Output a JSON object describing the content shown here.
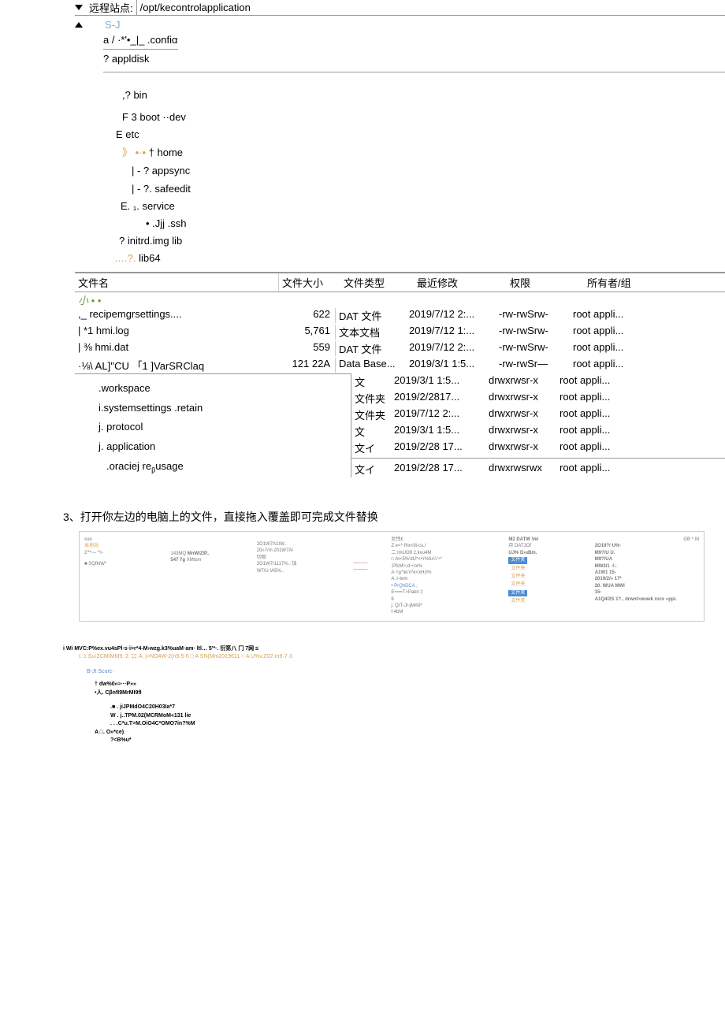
{
  "header": {
    "label": "远程站点:",
    "path": "/opt/kecontrolapplication"
  },
  "tree": {
    "sj": "S-J",
    "line1": "a / ·*'•_|_ .confiα",
    "line2": "? appldisk",
    "items": [
      ",? bin",
      "F 3 boot ··dev",
      "E    etc",
      "》 •·• † home",
      "| - ? appsync",
      "| - ?. safeedit",
      "E. ₁. service",
      "• .Jjj .ssh",
      "? initrd.img lib",
      "….?. lib64"
    ]
  },
  "table": {
    "headers": [
      "文件名",
      "文件大小",
      "文件类型",
      "最近修改",
      "权限",
      "所有者/组"
    ],
    "topDots": "小 • •",
    "rows": [
      {
        "name": ",_ recipemgrsettings....",
        "size": "622",
        "type": "DAT 文件",
        "mod": "2019/7/12  2:...",
        "perm": "-rw-rwSrw-",
        "own": "root appli..."
      },
      {
        "name": "| *1 hmi.log",
        "size": "5,761",
        "type": "文本文档",
        "mod": "2019/7/12  1:...",
        "perm": "-rw-rwSrw-",
        "own": "root appli..."
      },
      {
        "name": "| ⅜ hmi.dat",
        "size": "559",
        "type": "DAT 文件",
        "mod": "2019/7/12  2:...",
        "perm": "-rw-rwSrw-",
        "own": "root appli..."
      },
      {
        "name": "·⅛\\ AL]''CU 「1 ]VarSRClaq",
        "size": "121 22A",
        "type": "Data Base...",
        "mod": "2019/3/1 1:5...",
        "perm": "-rw-rwSr—",
        "own": "root appli..."
      }
    ],
    "folderBlock": [
      {
        "left": ".workspace",
        "type": "文",
        "mod": "2019/3/1 1:5...",
        "perm": "drwxrwsr-x",
        "own": "root appli..."
      },
      {
        "left": "i.systemsettings .retain",
        "type": "文件夹",
        "mod": "2019/2/2817...",
        "perm": "drwxrwsr-x",
        "own": "root appli..."
      },
      {
        "left": "j.  protocol",
        "type": "文件夹",
        "mod": "2019/7/12 2:...",
        "perm": "drwxrwsr-x",
        "own": "root appli..."
      },
      {
        "left": "j.  application",
        "type": "文",
        "mod": "2019/3/1 1:5...",
        "perm": "drwxrwsr-x",
        "own": "root appli..."
      },
      {
        "left": "",
        "type": "文イ",
        "mod": "2019/2/28 17...",
        "perm": "drwxrwsr-x",
        "own": "root appli..."
      },
      {
        "left": ".oraciej reβusage",
        "type": "文イ",
        "mod": "2019/2/28 17...",
        "perm": "drwxrwsrwx",
        "own": "root appli..."
      }
    ]
  },
  "section3": {
    "title": "3、打开你左边的电脑上的文件，直接拖入覆盖即可完成文件替换",
    "thumb": {
      "col1": {
        "a": "soo",
        "b": "本地站",
        "c": "2'**--- *'r-",
        "d": "■ SQfktW*"
      },
      "col2": {
        "a": "143MQ",
        "b": "547 7g",
        "c": "MnWlZIP..",
        "d": "XMtsm"
      },
      "col3": [
        "2O1W7A1tW..",
        "20i›7/m  201W7Al",
        "切取",
        "2O1W7/1117%.. 加",
        "W7/U IA5%.."
      ],
      "col4": {
        "h": "女性£",
        "items": [
          "Z e<*·flrx<9i-cs./",
          "二 ImUO9 2,kvu4M",
          "□ At<5%'dU*<•'r%fu¼'÷*",
          ",PfcM>;d⋅<or%",
          "A ¼y'\\te'n*e<xH)/%",
          "A :r-tem",
          "• PrQhDCA ;",
          "E===T>Pakri  ‡",
          "8",
          "",
          "j. QrT-Jr-jMA9*",
          "",
          "f 4bM"
        ]
      },
      "col5": {
        "a": "M2 DATW Vei",
        "b": "月 DATJOf",
        "c": "UJ% D›uBm.",
        "btns": [
          "文件夹",
          "文件夹",
          "文件夹",
          "文件夹",
          "文件夹",
          "文件夹"
        ]
      },
      "col6": [
        "2O19?/·U%·",
        "M9?/U U.",
        "M9?/UA",
        "MW3/1 ·l:.",
        "A1W1     15-",
        "2019/2/« 17*",
        "20. WUA MWl",
        "15-",
        "",
        "A1Q4/2S 1?.. drwnI>wuwk rocx «ppi."
      ],
      "topRight": "GB   *·M"
    }
  },
  "footer": {
    "l1": "i Wi MVC:P%ex.vu4sPl·s·i>r*4-M›wzg.k3%uaM·am·               ltl… 5'*·. 衍笫八 门 7网 ≤",
    "l2": "I. 1 Su›ZCM/MM9. 2. 口 A. j>NO4W-2(n9·5·6 □ A SN(Mm2019611 ○ A U%v.Z02·m9·7·3",
    "l3": "B-Jt Scurc·",
    "l4": "† dw%0«≈···P»»",
    "l5": "•人. CβnfI9MrMI9fI",
    "l6": ".■ . jiJPMdO4C20H03Ia*7",
    "l7": "W . j..TPM.02(MCRMoM«131 lie",
    "l8": ". . .C*u.T>M.OiO4C*OMO7in?%M",
    "l9": "A □. O»*ce)",
    "l10": "?<B%u*"
  }
}
